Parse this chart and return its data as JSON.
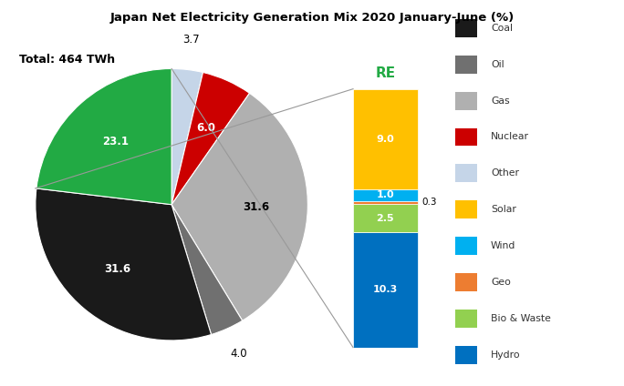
{
  "title": "Japan Net Electricity Generation Mix 2020 January-June (%)",
  "total_label": "Total: 464 TWh",
  "pie_labels": [
    "Other",
    "Nuclear",
    "Gas",
    "Oil",
    "Coal",
    "RE"
  ],
  "pie_values": [
    3.7,
    6.0,
    31.6,
    4.0,
    31.6,
    23.1
  ],
  "pie_colors": [
    "#c5d5e8",
    "#cc0000",
    "#b0b0b0",
    "#707070",
    "#1a1a1a",
    "#22aa44"
  ],
  "re_bar_labels": [
    "Solar",
    "Wind",
    "Geo",
    "Bio & Waste",
    "Hydro"
  ],
  "re_bar_values": [
    9.0,
    1.0,
    0.3,
    2.5,
    10.3
  ],
  "re_bar_colors": [
    "#ffc000",
    "#00b0f0",
    "#ed7d31",
    "#92d050",
    "#0070c0"
  ],
  "re_label": "RE",
  "re_label_color": "#22aa44",
  "legend_labels": [
    "Coal",
    "Oil",
    "Gas",
    "Nuclear",
    "Other",
    "Solar",
    "Wind",
    "Geo",
    "Bio & Waste",
    "Hydro"
  ],
  "legend_colors": [
    "#1a1a1a",
    "#707070",
    "#b0b0b0",
    "#cc0000",
    "#c5d5e8",
    "#ffc000",
    "#00b0f0",
    "#ed7d31",
    "#92d050",
    "#0070c0"
  ],
  "background_color": "#ffffff"
}
